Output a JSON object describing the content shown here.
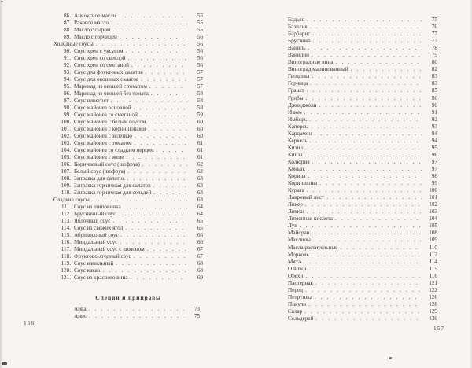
{
  "meta": {
    "leader_dot": " .",
    "paper_color": "#f6f5f1",
    "ink_color": "#3f3b36"
  },
  "left_page": {
    "page_number": "156",
    "rows": [
      {
        "n": "86.",
        "label": "Анчоусное масло",
        "page": "55"
      },
      {
        "n": "87.",
        "label": "Раковое масло",
        "page": "55"
      },
      {
        "n": "88.",
        "label": "Масло с сыром",
        "page": "55"
      },
      {
        "n": "89.",
        "label": "Масло с горчицей",
        "page": "56"
      },
      {
        "t": "section",
        "label": "Холодные соусы",
        "page": "56"
      },
      {
        "n": "90.",
        "label": "Соус хрен с уксусом",
        "page": "56"
      },
      {
        "n": "91.",
        "label": "Соус хрен со свеклой",
        "page": "56"
      },
      {
        "n": "92.",
        "label": "Соус хрен со сметаной",
        "page": "56"
      },
      {
        "n": "93.",
        "label": "Соус для фруктовых салатов",
        "page": "57"
      },
      {
        "n": "94.",
        "label": "Соус для овощных салатов",
        "page": "57"
      },
      {
        "n": "95.",
        "label": "Маринад из овощей с томатом",
        "page": "57"
      },
      {
        "n": "96.",
        "label": "Маринад из овощей без томата",
        "page": "58"
      },
      {
        "n": "97.",
        "label": "Соус винегрет",
        "page": "58"
      },
      {
        "n": "98.",
        "label": "Соус майонез основной",
        "page": "58"
      },
      {
        "n": "99.",
        "label": "Соус майонез со сметаной",
        "page": "59"
      },
      {
        "n": "100.",
        "label": "Соус майонез с белым соусом",
        "page": "60"
      },
      {
        "n": "101.",
        "label": "Соус майонез с корнишонами",
        "page": "60"
      },
      {
        "n": "102.",
        "label": "Соус майонез с зеленью",
        "page": "60"
      },
      {
        "n": "103.",
        "label": "Соус майонез с томатом",
        "page": "61"
      },
      {
        "n": "104.",
        "label": "Соус майонез со сладким перцем",
        "page": "61"
      },
      {
        "n": "105.",
        "label": "Соус майонез с желе",
        "page": "61"
      },
      {
        "n": "106.",
        "label": "Коричневый соус (шофруа)",
        "page": "62"
      },
      {
        "n": "107.",
        "label": "Белый соус (шофруа)",
        "page": "62"
      },
      {
        "n": "108.",
        "label": "Заправка для салатов",
        "page": "63"
      },
      {
        "n": "109.",
        "label": "Заправка горчичная для салатов",
        "page": "63"
      },
      {
        "n": "110.",
        "label": "Заправка горчичная для сельдей",
        "page": "63"
      },
      {
        "t": "section",
        "label": "Сладкие соусы",
        "page": "63"
      },
      {
        "n": "111.",
        "label": "Соус из шиповника",
        "page": "64"
      },
      {
        "n": "112.",
        "label": "Брусничный соус",
        "page": "64"
      },
      {
        "n": "113.",
        "label": "Яблочный соус",
        "page": "65"
      },
      {
        "n": "114.",
        "label": "Соус из свежих ягод",
        "page": "65"
      },
      {
        "n": "115.",
        "label": "Абрикосовый соус",
        "page": "66"
      },
      {
        "n": "116.",
        "label": "Миндальный соус",
        "page": "66"
      },
      {
        "n": "117.",
        "label": "Миндальный соус с лимоном",
        "page": "67"
      },
      {
        "n": "118.",
        "label": "Фруктово-ягодный соус",
        "page": "67"
      },
      {
        "n": "119.",
        "label": "Соус ванильный",
        "page": "68"
      },
      {
        "n": "120.",
        "label": "Соус какао",
        "page": "68"
      },
      {
        "n": "121.",
        "label": "Соус из красного вина",
        "page": "69"
      }
    ],
    "spice_heading": "Специи и приправы",
    "spice_rows": [
      {
        "label": "Айва",
        "page": "73"
      },
      {
        "label": "Анис",
        "page": "75"
      }
    ]
  },
  "right_page": {
    "page_number": "157",
    "rows": [
      {
        "label": "Бадьян",
        "page": "75"
      },
      {
        "label": "Базилик",
        "page": "76"
      },
      {
        "label": "Барбарис",
        "page": "77"
      },
      {
        "label": "Брусника",
        "page": "77"
      },
      {
        "label": "Ваниль",
        "page": "78"
      },
      {
        "label": "Ванилин",
        "page": "79"
      },
      {
        "label": "Виноградные вина",
        "page": "80"
      },
      {
        "label": "Виноград маринованный",
        "page": "82"
      },
      {
        "label": "Гвоздика",
        "page": "83"
      },
      {
        "label": "Горчица",
        "page": "83"
      },
      {
        "label": "Гранат",
        "page": "85"
      },
      {
        "label": "Грибы",
        "page": "86"
      },
      {
        "label": "Джонджоли",
        "page": "90"
      },
      {
        "label": "Изюм",
        "page": "91"
      },
      {
        "label": "Имбирь",
        "page": "92"
      },
      {
        "label": "Каперсы",
        "page": "93"
      },
      {
        "label": "Кардамон",
        "page": "94"
      },
      {
        "label": "Кервель",
        "page": "94"
      },
      {
        "label": "Кизил",
        "page": "95"
      },
      {
        "label": "Кинза",
        "page": "96"
      },
      {
        "label": "Колюрия",
        "page": "97"
      },
      {
        "label": "Коньяк",
        "page": "97"
      },
      {
        "label": "Корица",
        "page": "98"
      },
      {
        "label": "Корнишоны",
        "page": "99"
      },
      {
        "label": "Курага",
        "page": "100"
      },
      {
        "label": "Лавровый лист",
        "page": "101"
      },
      {
        "label": "Ликер",
        "page": "102"
      },
      {
        "label": "Лимон",
        "page": "103"
      },
      {
        "label": "Лимонная кислота",
        "page": "104"
      },
      {
        "label": "Лук",
        "page": "105"
      },
      {
        "label": "Майоран",
        "page": "108"
      },
      {
        "label": "Маслины",
        "page": "109"
      },
      {
        "label": "Масла растительные",
        "page": "110"
      },
      {
        "label": "Морковь",
        "page": "112"
      },
      {
        "label": "Мята",
        "page": "114"
      },
      {
        "label": "Оливки",
        "page": "115"
      },
      {
        "label": "Орехи",
        "page": "116"
      },
      {
        "label": "Пастернак",
        "page": "121"
      },
      {
        "label": "Перец",
        "page": "122"
      },
      {
        "label": "Петрушка",
        "page": "126"
      },
      {
        "label": "Пикули",
        "page": "128"
      },
      {
        "label": "Сахар",
        "page": "129"
      },
      {
        "label": "Сельдерей",
        "page": "130"
      }
    ]
  }
}
